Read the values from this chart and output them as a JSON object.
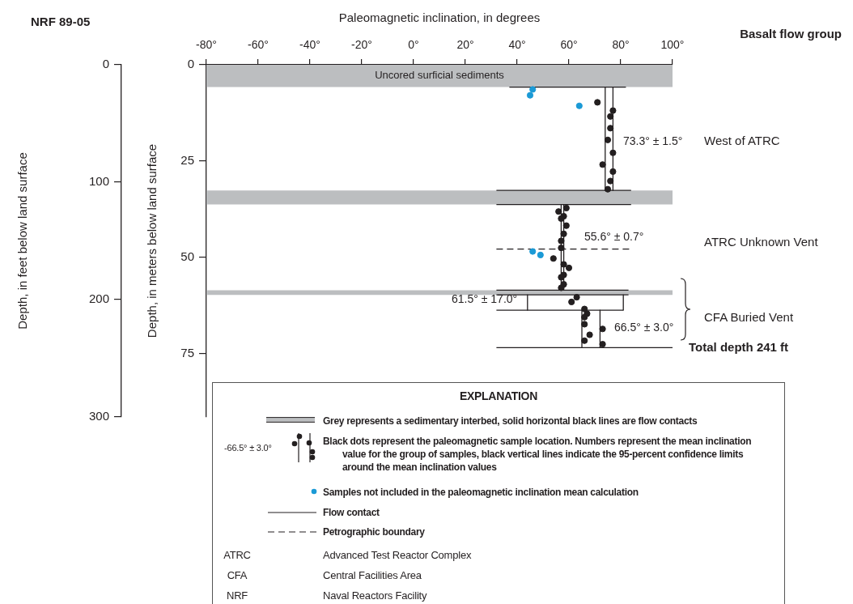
{
  "chart_data": {
    "type": "scatter",
    "title": "NRF 89-05",
    "xlabel": "Paleomagnetic inclination, in degrees",
    "ylabel": "Depth, in feet below land surface",
    "y2label": "Depth, in meters below land surface",
    "legend_title": "EXPLANATION",
    "legend": "bottom",
    "xlim": [
      -80,
      100
    ],
    "xticks": [
      {
        "value": -80,
        "label": "-80°"
      },
      {
        "value": -60,
        "label": "-60°"
      },
      {
        "value": -40,
        "label": "-40°"
      },
      {
        "value": -20,
        "label": "-20°"
      },
      {
        "value": 0,
        "label": "0°"
      },
      {
        "value": 20,
        "label": "20°"
      },
      {
        "value": 40,
        "label": "40°"
      },
      {
        "value": 60,
        "label": "60°"
      },
      {
        "value": 80,
        "label": "80°"
      },
      {
        "value": 100,
        "label": "100°"
      }
    ],
    "ylim": [
      300,
      0
    ],
    "yticks": [
      0,
      100,
      200,
      300
    ],
    "y2lim": [
      91.44,
      0
    ],
    "y2ticks": [
      0,
      25,
      50,
      75
    ],
    "grid": false,
    "marker": "circle",
    "series": [
      {
        "name": "Black dots represent the paleomagnetic sample location. Numbers represent the mean inclination value for the group of samples, black vertical lines indicate the 95-percent confidence limits around the mean inclination values",
        "color": "#231f20",
        "x": [
          71,
          77,
          76,
          76,
          75,
          77,
          73,
          77,
          76,
          75,
          59,
          56,
          58,
          57,
          59,
          58,
          57,
          57,
          54,
          58,
          60,
          58,
          57,
          58,
          57,
          63,
          61,
          66,
          67,
          66,
          66,
          73,
          68,
          66,
          73
        ],
        "values": [
          32,
          39,
          44,
          54,
          64,
          75,
          85,
          91,
          99,
          106,
          122,
          125,
          129,
          131,
          137,
          144,
          150,
          156,
          165,
          170,
          173,
          179,
          181,
          187,
          190,
          198,
          202,
          208,
          212,
          215,
          221,
          225,
          230,
          235,
          238
        ]
      },
      {
        "name": "Samples not included in the paleomagnetic inclination mean calculation",
        "color": "#1b9ad6",
        "x": [
          46,
          45,
          64,
          46,
          49
        ],
        "values": [
          21,
          26,
          35,
          159,
          162
        ]
      },
      {
        "type": "line",
        "name": "Flow contact",
        "color": "#231f20",
        "marker": "none",
        "x": [
          37,
          82
        ],
        "values": [
          19,
          19
        ]
      },
      {
        "type": "line",
        "name": "Petrographic boundary",
        "color": "#231f20",
        "marker": "none",
        "line_style": "dashed",
        "x": [
          32,
          84
        ],
        "values": [
          157,
          157
        ]
      },
      {
        "type": "line",
        "color": "#231f20",
        "marker": "none",
        "x": [
          32,
          84
        ],
        "values": [
          107,
          107
        ]
      },
      {
        "type": "line",
        "color": "#231f20",
        "marker": "none",
        "x": [
          32,
          84
        ],
        "values": [
          119,
          119
        ]
      },
      {
        "type": "line",
        "color": "#231f20",
        "marker": "none",
        "x": [
          32,
          83
        ],
        "values": [
          192,
          192
        ]
      },
      {
        "type": "line",
        "color": "#231f20",
        "marker": "none",
        "x": [
          32,
          83
        ],
        "values": [
          196,
          196
        ]
      },
      {
        "type": "line",
        "color": "#231f20",
        "marker": "none",
        "x": [
          32,
          81
        ],
        "values": [
          209,
          209
        ]
      },
      {
        "type": "line",
        "color": "#231f20",
        "marker": "none",
        "x": [
          32,
          100
        ],
        "values": [
          241,
          241
        ]
      },
      {
        "type": "line",
        "color": "#231f20",
        "marker": "none",
        "x": [
          74,
          74
        ],
        "values": [
          19,
          107
        ]
      },
      {
        "type": "line",
        "color": "#231f20",
        "marker": "none",
        "x": [
          77,
          77
        ],
        "values": [
          19,
          107
        ]
      },
      {
        "type": "line",
        "color": "#231f20",
        "marker": "none",
        "x": [
          57,
          57
        ],
        "values": [
          119,
          192
        ]
      },
      {
        "type": "line",
        "color": "#231f20",
        "marker": "none",
        "x": [
          58,
          58
        ],
        "values": [
          119,
          192
        ]
      },
      {
        "type": "line",
        "color": "#231f20",
        "marker": "none",
        "x": [
          44,
          44
        ],
        "values": [
          196,
          209
        ]
      },
      {
        "type": "line",
        "color": "#231f20",
        "marker": "none",
        "x": [
          81,
          81
        ],
        "values": [
          196,
          209
        ]
      },
      {
        "type": "line",
        "color": "#231f20",
        "marker": "none",
        "x": [
          65,
          65
        ],
        "values": [
          209,
          241
        ]
      },
      {
        "type": "line",
        "color": "#231f20",
        "marker": "none",
        "x": [
          72,
          72
        ],
        "values": [
          209,
          241
        ]
      }
    ],
    "bands": [
      {
        "axis": "y",
        "from": 0,
        "to": 19,
        "label": "Uncored surficial sediments",
        "color": "#bcbec0"
      },
      {
        "axis": "y",
        "from": 107,
        "to": 119,
        "color": "#bcbec0"
      },
      {
        "axis": "y",
        "from": 192,
        "to": 196,
        "color": "#bcbec0"
      }
    ],
    "annotations": [
      "Basalt flow group",
      "West of ATRC",
      "ATRC Unknown Vent",
      "CFA Buried Vent",
      "73.3° ± 1.5°",
      "55.6° ± 0.7°",
      "61.5° ± 17.0°",
      "66.5° ± 3.0°",
      {
        "text": "Total depth 241 ft",
        "x": 100,
        "y": 241
      },
      "Grey represents a sedimentary interbed, solid horizontal black lines are flow contacts",
      "-66.5° ± 3.0°",
      "ATRC",
      "Advanced Test Reactor Complex",
      "CFA",
      "Central Facilities Area",
      "NRF",
      "Naval Reactors Facility"
    ]
  }
}
